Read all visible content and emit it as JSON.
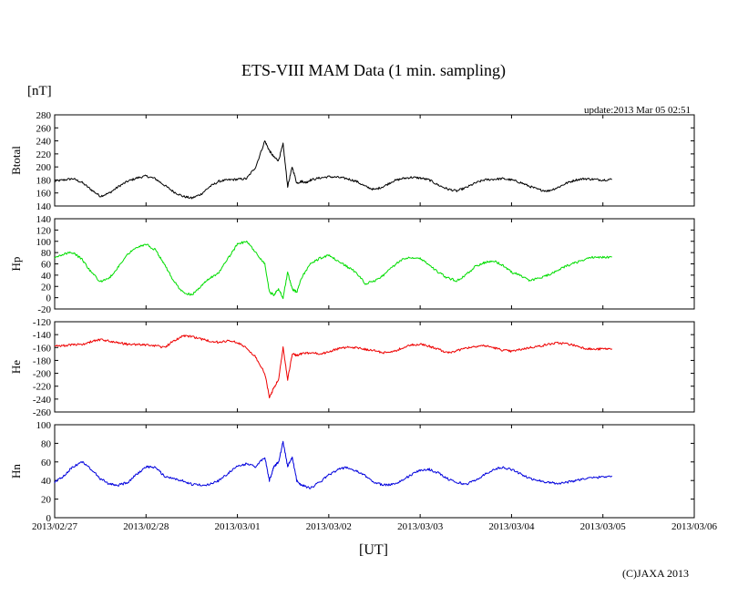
{
  "chart_data": {
    "type": "line",
    "title": "ETS-VIII MAM Data (1 min. sampling)",
    "units": "[nT]",
    "update_text": "update:2013 Mar 05 02:51",
    "xlabel": "[UT]",
    "copyright": "(C)JAXA 2013",
    "x_ticks": [
      "2013/02/27",
      "2013/02/28",
      "2013/03/01",
      "2013/03/02",
      "2013/03/03",
      "2013/03/04",
      "2013/03/05",
      "2013/03/06"
    ],
    "x_range": [
      0,
      7
    ],
    "panels": [
      {
        "name": "btotal",
        "ylabel": "Btotal",
        "color": "#000000",
        "ylim": [
          140,
          280
        ],
        "ticks": [
          "280",
          "260",
          "240",
          "220",
          "200",
          "180",
          "160",
          "140"
        ],
        "series": {
          "x": [
            0,
            0.1,
            0.2,
            0.3,
            0.4,
            0.5,
            0.6,
            0.7,
            0.8,
            0.9,
            1.0,
            1.1,
            1.2,
            1.3,
            1.4,
            1.5,
            1.6,
            1.7,
            1.8,
            1.9,
            2.0,
            2.1,
            2.2,
            2.3,
            2.35,
            2.4,
            2.45,
            2.5,
            2.55,
            2.6,
            2.65,
            2.7,
            2.75,
            2.8,
            2.9,
            3.0,
            3.1,
            3.2,
            3.3,
            3.4,
            3.5,
            3.6,
            3.7,
            3.8,
            3.9,
            4.0,
            4.1,
            4.2,
            4.3,
            4.4,
            4.5,
            4.6,
            4.7,
            4.8,
            4.9,
            5.0,
            5.1,
            5.2,
            5.3,
            5.4,
            5.5,
            5.6,
            5.7,
            5.8,
            5.9,
            6.0,
            6.1
          ],
          "values": [
            178,
            180,
            182,
            176,
            165,
            155,
            160,
            170,
            178,
            183,
            186,
            182,
            172,
            162,
            155,
            152,
            158,
            170,
            178,
            180,
            181,
            182,
            200,
            240,
            225,
            215,
            210,
            235,
            170,
            200,
            175,
            178,
            176,
            180,
            183,
            185,
            184,
            182,
            178,
            170,
            165,
            170,
            178,
            182,
            184,
            183,
            180,
            172,
            166,
            163,
            168,
            175,
            180,
            181,
            182,
            180,
            176,
            170,
            165,
            163,
            168,
            175,
            180,
            182,
            181,
            180,
            181
          ]
        }
      },
      {
        "name": "hp",
        "ylabel": "Hp",
        "color": "#00dd00",
        "ylim": [
          -20,
          140
        ],
        "ticks": [
          "140",
          "120",
          "100",
          "80",
          "60",
          "40",
          "20",
          "0",
          "-20"
        ],
        "series": {
          "x": [
            0,
            0.1,
            0.2,
            0.3,
            0.4,
            0.5,
            0.6,
            0.7,
            0.8,
            0.9,
            1.0,
            1.1,
            1.2,
            1.3,
            1.4,
            1.5,
            1.6,
            1.7,
            1.8,
            1.9,
            2.0,
            2.1,
            2.2,
            2.3,
            2.35,
            2.4,
            2.45,
            2.5,
            2.55,
            2.6,
            2.65,
            2.7,
            2.8,
            2.9,
            3.0,
            3.1,
            3.2,
            3.3,
            3.4,
            3.5,
            3.6,
            3.7,
            3.8,
            3.9,
            4.0,
            4.1,
            4.2,
            4.3,
            4.4,
            4.5,
            4.6,
            4.7,
            4.8,
            4.9,
            5.0,
            5.1,
            5.2,
            5.3,
            5.4,
            5.5,
            5.6,
            5.7,
            5.8,
            5.9,
            6.0,
            6.1
          ],
          "values": [
            70,
            78,
            80,
            68,
            45,
            28,
            35,
            55,
            78,
            90,
            95,
            85,
            60,
            30,
            10,
            5,
            20,
            35,
            45,
            70,
            95,
            100,
            80,
            60,
            10,
            5,
            15,
            0,
            45,
            15,
            10,
            35,
            60,
            70,
            75,
            65,
            55,
            45,
            25,
            30,
            40,
            55,
            68,
            72,
            70,
            58,
            45,
            35,
            30,
            40,
            55,
            62,
            66,
            58,
            45,
            40,
            30,
            35,
            40,
            48,
            56,
            62,
            68,
            72,
            72,
            72
          ]
        }
      },
      {
        "name": "he",
        "ylabel": "He",
        "color": "#ee0000",
        "ylim": [
          -260,
          -120
        ],
        "ticks": [
          "-120",
          "-140",
          "-160",
          "-180",
          "-200",
          "-220",
          "-240",
          "-260"
        ],
        "series": {
          "x": [
            0,
            0.1,
            0.2,
            0.3,
            0.4,
            0.5,
            0.6,
            0.7,
            0.8,
            0.9,
            1.0,
            1.1,
            1.2,
            1.3,
            1.4,
            1.5,
            1.6,
            1.7,
            1.8,
            1.9,
            2.0,
            2.1,
            2.2,
            2.3,
            2.35,
            2.4,
            2.45,
            2.5,
            2.55,
            2.6,
            2.65,
            2.7,
            2.8,
            2.9,
            3.0,
            3.1,
            3.2,
            3.3,
            3.4,
            3.5,
            3.6,
            3.7,
            3.8,
            3.9,
            4.0,
            4.1,
            4.2,
            4.3,
            4.4,
            4.5,
            4.6,
            4.7,
            4.8,
            4.9,
            5.0,
            5.1,
            5.2,
            5.3,
            5.4,
            5.5,
            5.6,
            5.7,
            5.8,
            5.9,
            6.0,
            6.1
          ],
          "values": [
            -157,
            -157,
            -156,
            -155,
            -151,
            -148,
            -150,
            -153,
            -155,
            -155,
            -156,
            -157,
            -160,
            -150,
            -142,
            -143,
            -147,
            -150,
            -152,
            -150,
            -152,
            -160,
            -175,
            -200,
            -238,
            -222,
            -210,
            -160,
            -210,
            -170,
            -172,
            -170,
            -168,
            -170,
            -167,
            -162,
            -160,
            -160,
            -163,
            -165,
            -168,
            -167,
            -161,
            -156,
            -155,
            -158,
            -163,
            -168,
            -165,
            -161,
            -158,
            -157,
            -160,
            -164,
            -166,
            -163,
            -160,
            -158,
            -155,
            -153,
            -154,
            -157,
            -161,
            -163,
            -162,
            -162
          ]
        }
      },
      {
        "name": "hn",
        "ylabel": "Hn",
        "color": "#0000dd",
        "ylim": [
          0,
          100
        ],
        "ticks": [
          "100",
          "80",
          "60",
          "40",
          "20",
          "0"
        ],
        "series": {
          "x": [
            0,
            0.1,
            0.2,
            0.3,
            0.4,
            0.5,
            0.6,
            0.7,
            0.8,
            0.9,
            1.0,
            1.1,
            1.2,
            1.3,
            1.4,
            1.5,
            1.6,
            1.7,
            1.8,
            1.9,
            2.0,
            2.1,
            2.2,
            2.3,
            2.35,
            2.4,
            2.45,
            2.5,
            2.55,
            2.6,
            2.65,
            2.7,
            2.8,
            2.9,
            3.0,
            3.1,
            3.2,
            3.3,
            3.4,
            3.5,
            3.6,
            3.7,
            3.8,
            3.9,
            4.0,
            4.1,
            4.2,
            4.3,
            4.4,
            4.5,
            4.6,
            4.7,
            4.8,
            4.9,
            5.0,
            5.1,
            5.2,
            5.3,
            5.4,
            5.5,
            5.6,
            5.7,
            5.8,
            5.9,
            6.0,
            6.1
          ],
          "values": [
            38,
            45,
            55,
            60,
            52,
            42,
            36,
            35,
            38,
            47,
            55,
            54,
            45,
            42,
            40,
            36,
            35,
            36,
            40,
            48,
            55,
            58,
            55,
            65,
            40,
            55,
            60,
            82,
            55,
            65,
            40,
            35,
            32,
            38,
            46,
            52,
            54,
            50,
            45,
            38,
            35,
            36,
            40,
            46,
            51,
            52,
            48,
            42,
            38,
            36,
            40,
            46,
            52,
            54,
            52,
            47,
            42,
            40,
            38,
            37,
            38,
            40,
            42,
            43,
            44,
            45
          ]
        }
      }
    ]
  }
}
